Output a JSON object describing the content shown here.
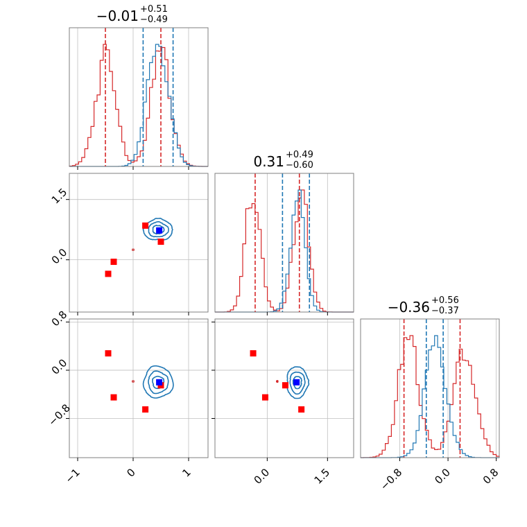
{
  "colors": {
    "red": "#d62728",
    "red_light": "#ec9c9c",
    "red_mid": "#e05050",
    "blue": "#1f77b4",
    "marker_red": "#ff0000",
    "marker_blue": "#0000ff",
    "grid": "#bfbfbf",
    "frame": "#7f7f7f"
  },
  "chart_data": {
    "type": "corner",
    "parameters": [
      {
        "title_median": "−0.01",
        "title_plus": "+0.51",
        "title_minus": "−0.49",
        "range": [
          -1.15,
          1.35
        ],
        "ticks": [
          -1,
          0,
          1
        ],
        "tick_labels": [
          "−1",
          "0",
          "1"
        ],
        "quantiles_red": [
          -0.5,
          0.5
        ],
        "quantiles_blue": [
          0.18,
          0.72
        ]
      },
      {
        "title_median": "0.31",
        "title_plus": "+0.49",
        "title_minus": "−0.60",
        "range": [
          -1.3,
          2.15
        ],
        "ticks": [
          0.0,
          1.5
        ],
        "tick_labels": [
          "0.0",
          "1.5"
        ],
        "quantiles_red": [
          -0.3,
          0.8
        ],
        "quantiles_blue": [
          0.38,
          1.05
        ]
      },
      {
        "title_median": "−0.36",
        "title_plus": "+0.56",
        "title_minus": "−0.37",
        "range": [
          -1.45,
          0.85
        ],
        "ticks": [
          -0.8,
          0.0,
          0.8
        ],
        "tick_labels": [
          "−0.8",
          "0.0",
          "0.8"
        ],
        "quantiles_red": [
          -0.73,
          0.2
        ],
        "quantiles_blue": [
          -0.36,
          -0.08
        ]
      }
    ],
    "series": [
      {
        "color": "red",
        "modes": [
          {
            "p0": -0.5,
            "p1": -0.35,
            "p2": 0.28,
            "w": 0.5
          },
          {
            "p0": 0.5,
            "p1": 0.85,
            "p2": -0.65,
            "w": 0.5
          }
        ]
      },
      {
        "color": "blue",
        "modes": [
          {
            "p0": 0.45,
            "p1": 0.75,
            "p2": -0.2,
            "w": 1.0
          }
        ]
      }
    ],
    "markers_red": [
      {
        "p0": -0.45,
        "p1": -0.35,
        "p2": 0.28
      },
      {
        "p0": -0.35,
        "p1": -0.05,
        "p2": -0.45
      },
      {
        "p0": 0.22,
        "p1": 0.85,
        "p2": -0.65
      },
      {
        "p0": 0.5,
        "p1": 0.45,
        "p2": -0.25
      }
    ],
    "marker_blue": {
      "p0": 0.47,
      "p1": 0.73,
      "p2": -0.2
    }
  }
}
